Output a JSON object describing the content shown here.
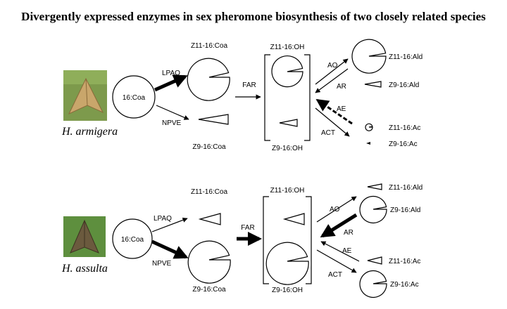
{
  "title": "Divergently expressed enzymes in sex pheromone biosynthesis of two closely related species",
  "species": {
    "top": "H. armigera",
    "bottom": "H. assulta"
  },
  "precursor": "16:Coa",
  "enzymes": {
    "lpaq": "LPAQ",
    "npve": "NPVE",
    "far": "FAR",
    "ao": "AO",
    "ar": "AR",
    "ae": "AE",
    "act": "ACT"
  },
  "compounds": {
    "z11_coa": "Z11-16:Coa",
    "z9_coa": "Z9-16:Coa",
    "z11_oh": "Z11-16:OH",
    "z9_oh": "Z9-16:OH",
    "z11_ald": "Z11-16:Ald",
    "z9_ald": "Z9-16:Ald",
    "z11_ac": "Z11-16:Ac",
    "z9_ac": "Z9-16:Ac"
  },
  "colors": {
    "ink": "#000000",
    "moth_top_bg": "#7d9a4c",
    "moth_top_body": "#c9a66b",
    "moth_bottom_bg": "#5e8f3e",
    "moth_bottom_body": "#6b5a3e"
  }
}
